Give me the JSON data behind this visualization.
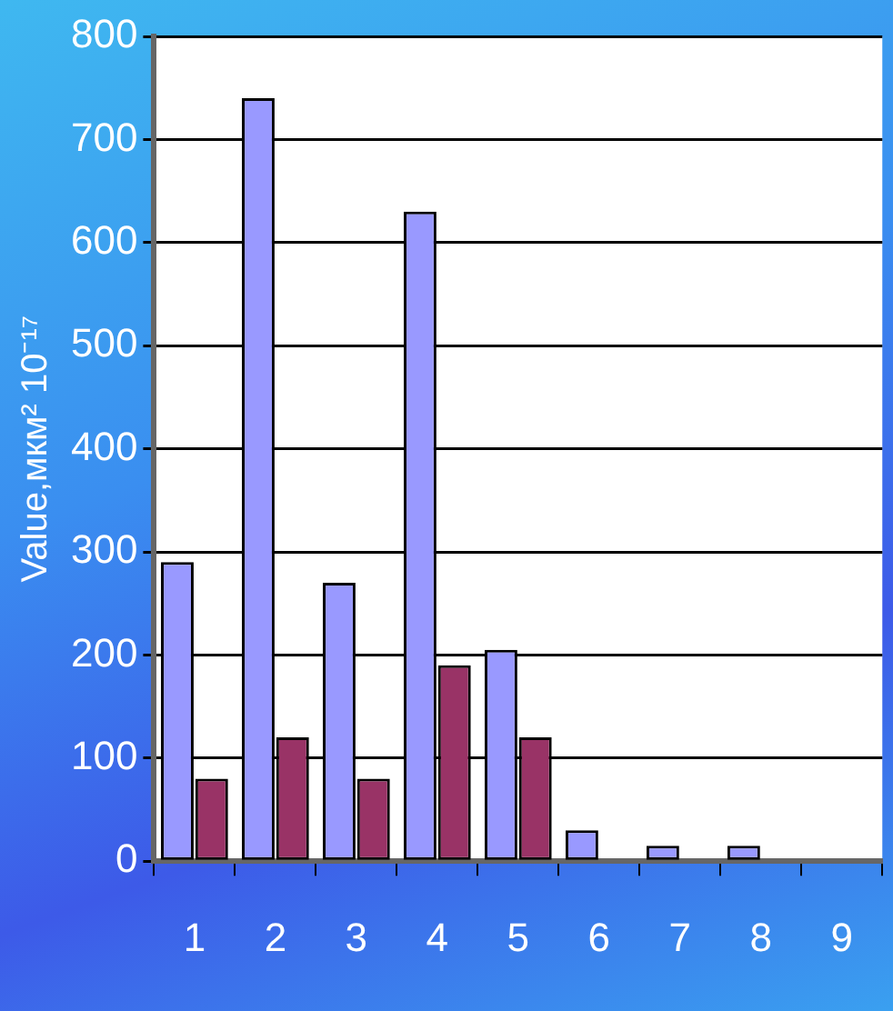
{
  "chart_data": {
    "type": "bar",
    "ylabel": "Value,мкм² 10⁻¹⁷",
    "categories": [
      "1",
      "2",
      "3",
      "4",
      "5",
      "6",
      "7",
      "8",
      "9"
    ],
    "series": [
      {
        "color": "#9999ff",
        "values": [
          290,
          740,
          270,
          630,
          205,
          30,
          15,
          15,
          0
        ]
      },
      {
        "color": "#993366",
        "values": [
          80,
          120,
          80,
          190,
          120,
          0,
          0,
          0,
          0
        ]
      }
    ],
    "ylim": [
      0,
      800
    ],
    "yticks": [
      0,
      100,
      200,
      300,
      400,
      500,
      600,
      700,
      800
    ],
    "grid": "y",
    "legend": false
  }
}
